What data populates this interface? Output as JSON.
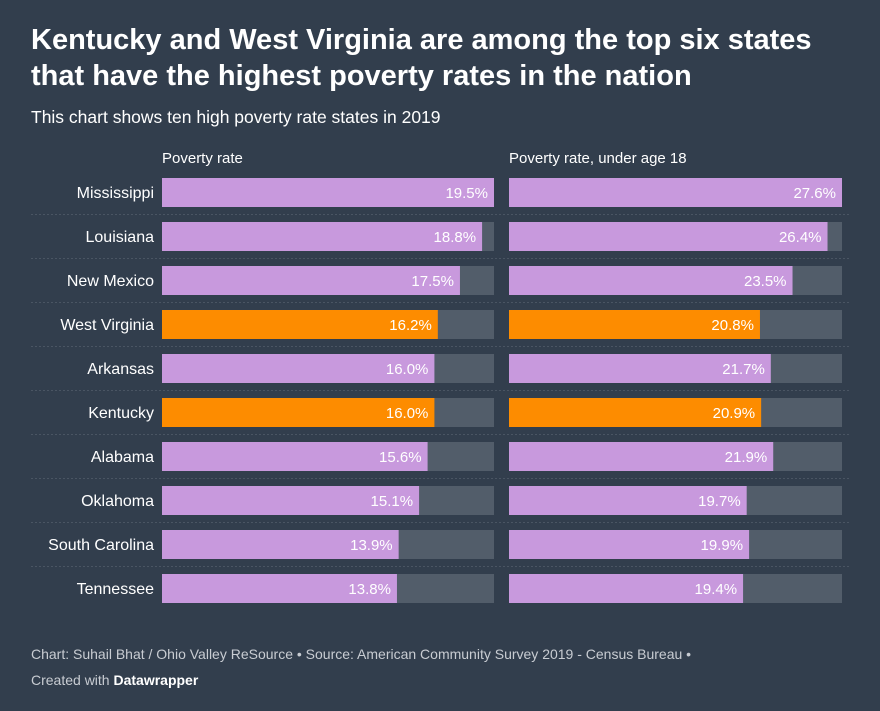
{
  "header": {
    "title": "Kentucky and West Virginia are among the top six states that have the highest poverty rates in the nation",
    "subtitle": "This chart shows ten high poverty rate states in 2019"
  },
  "colors": {
    "background": "#323e4d",
    "bar_default": "#c899dd",
    "bar_highlight": "#fd8c00",
    "bar_track": "#525d6a",
    "divider": "#4a5563"
  },
  "chart_data": {
    "type": "bar",
    "orientation": "horizontal",
    "title": "Kentucky and West Virginia are among the top six states that have the highest poverty rates in the nation",
    "subtitle": "This chart shows ten high poverty rate states in 2019",
    "categories": [
      "Mississippi",
      "Louisiana",
      "New Mexico",
      "West Virginia",
      "Arkansas",
      "Kentucky",
      "Alabama",
      "Oklahoma",
      "South Carolina",
      "Tennessee"
    ],
    "highlighted": [
      "West Virginia",
      "Kentucky"
    ],
    "value_suffix": "%",
    "series": [
      {
        "name": "Poverty rate",
        "values": [
          19.5,
          18.8,
          17.5,
          16.2,
          16.0,
          16.0,
          15.6,
          15.1,
          13.9,
          13.8
        ],
        "xlim": [
          0,
          19.5
        ]
      },
      {
        "name": "Poverty rate, under age 18",
        "values": [
          27.6,
          26.4,
          23.5,
          20.8,
          21.7,
          20.9,
          21.9,
          19.7,
          19.9,
          19.4
        ],
        "xlim": [
          0,
          27.6
        ]
      }
    ]
  },
  "footer": {
    "credit": "Chart: Suhail Bhat / Ohio Valley ReSource • Source: American Community Survey 2019 - Census Bureau •",
    "created_with": "Created with",
    "tool": "Datawrapper"
  }
}
